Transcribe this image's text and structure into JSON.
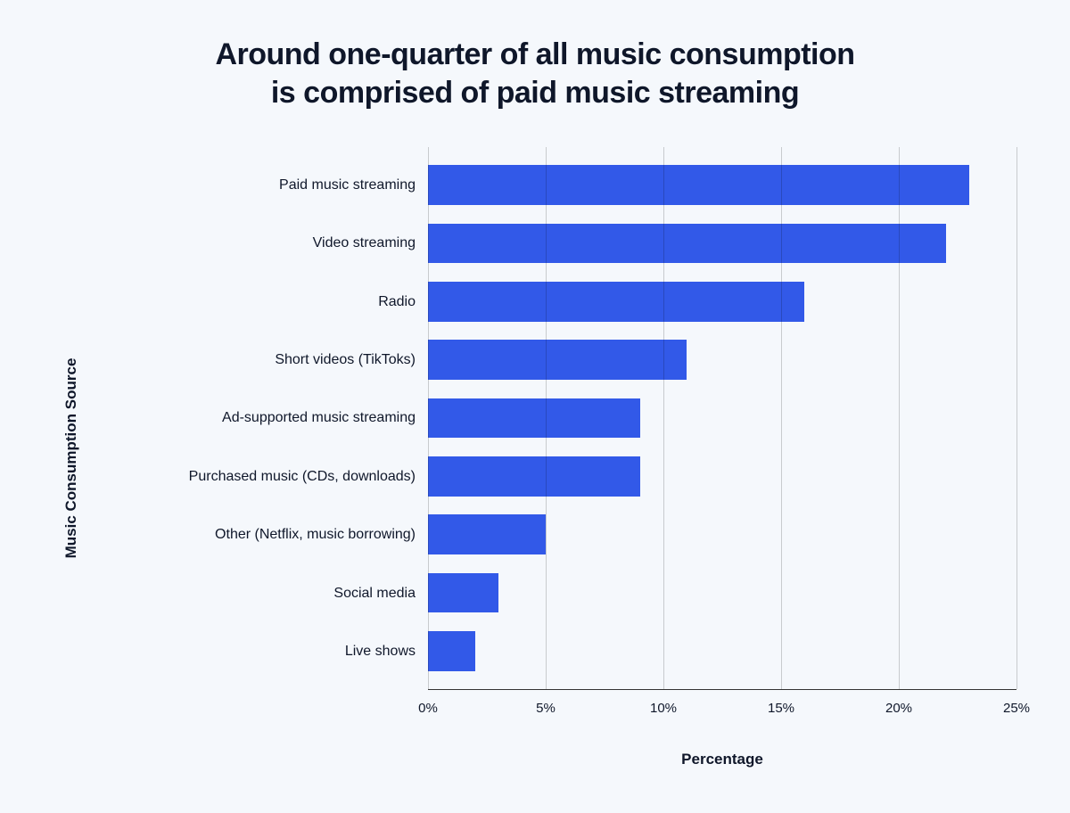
{
  "title_line1": "Around one-quarter of all music consumption",
  "title_line2": "is comprised of paid music streaming",
  "title_fontsize": 34,
  "title_color": "#0f172a",
  "chart": {
    "type": "bar-horizontal",
    "y_axis_label": "Music Consumption Source",
    "x_axis_label": "Percentage",
    "categories": [
      "Paid music streaming",
      "Video streaming",
      "Radio",
      "Short videos (TikToks)",
      "Ad-supported music streaming",
      "Purchased music (CDs, downloads)",
      "Other (Netflix, music borrowing)",
      "Social media",
      "Live shows"
    ],
    "values": [
      23,
      22,
      16,
      11,
      9,
      9,
      5,
      3,
      2
    ],
    "bar_color": "#3259e8",
    "xlim": [
      0,
      25
    ],
    "xtick_step": 5,
    "xtick_labels": [
      "0%",
      "5%",
      "10%",
      "15%",
      "20%",
      "25%"
    ],
    "tick_fontsize": 15,
    "category_fontsize": 16,
    "axis_label_fontsize": 17,
    "grid_color": "rgba(0,0,0,0.18)",
    "background_color": "#f5f8fc",
    "text_color": "#0f172a"
  }
}
